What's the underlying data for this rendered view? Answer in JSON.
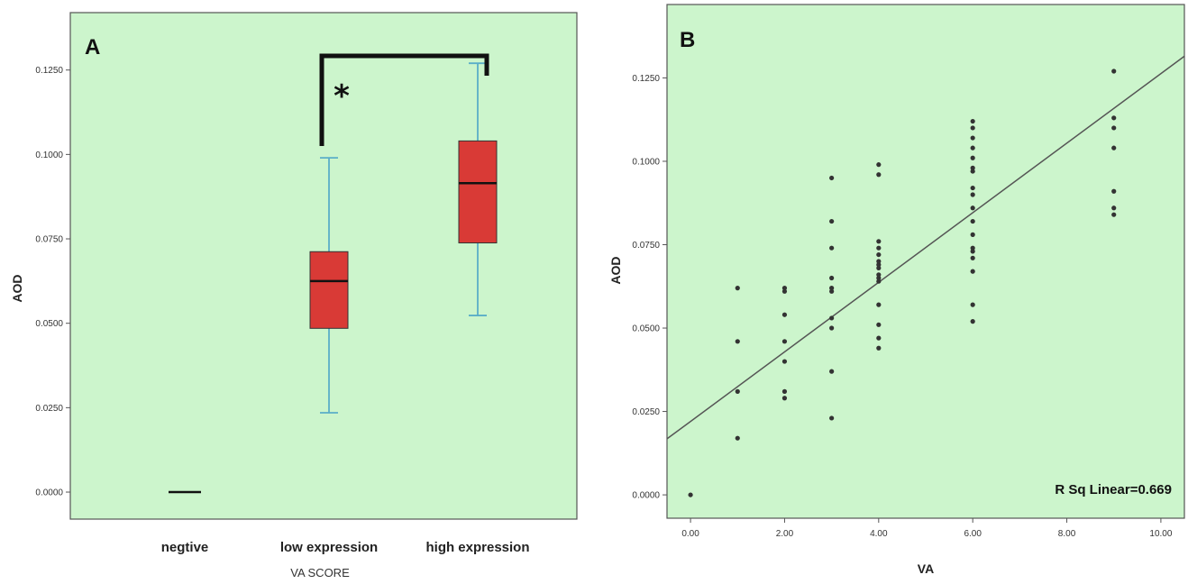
{
  "chart_data": [
    {
      "type": "box",
      "panel_label": "A",
      "xlabel": "VA SCORE",
      "ylabel": "AOD",
      "categories": [
        "negtive",
        "low expression",
        "high expression"
      ],
      "yticks": [
        "0.0000",
        "0.0250",
        "0.0500",
        "0.0750",
        "0.1000",
        "0.1250"
      ],
      "ylim": [
        -0.008,
        0.142
      ],
      "boxes": [
        {
          "category": "negtive",
          "min": 0.0,
          "q1": 0.0,
          "median": 0.0,
          "q3": 0.0,
          "max": 0.0
        },
        {
          "category": "low expression",
          "min": 0.0235,
          "q1": 0.0485,
          "median": 0.0625,
          "q3": 0.0712,
          "max": 0.099
        },
        {
          "category": "high expression",
          "min": 0.0523,
          "q1": 0.0738,
          "median": 0.0915,
          "q3": 0.104,
          "max": 0.127
        }
      ],
      "significance": {
        "between": [
          "low expression",
          "high expression"
        ],
        "marker": "*"
      },
      "colors": {
        "background": "#ccf5cc",
        "box": "#d93a36",
        "whisker": "#5aaec8"
      }
    },
    {
      "type": "scatter",
      "panel_label": "B",
      "xlabel": "VA",
      "ylabel": "AOD",
      "xticks": [
        "0.00",
        "2.00",
        "4.00",
        "6.00",
        "8.00",
        "10.00"
      ],
      "yticks": [
        "0.0000",
        "0.0250",
        "0.0500",
        "0.0750",
        "0.1000",
        "0.1250"
      ],
      "xlim": [
        -0.5,
        10.5
      ],
      "ylim": [
        -0.007,
        0.147
      ],
      "points": [
        [
          0,
          0.0
        ],
        [
          1,
          0.017
        ],
        [
          1,
          0.031
        ],
        [
          1,
          0.046
        ],
        [
          1,
          0.062
        ],
        [
          2,
          0.029
        ],
        [
          2,
          0.031
        ],
        [
          2,
          0.04
        ],
        [
          2,
          0.046
        ],
        [
          2,
          0.054
        ],
        [
          2,
          0.061
        ],
        [
          2,
          0.062
        ],
        [
          3,
          0.023
        ],
        [
          3,
          0.037
        ],
        [
          3,
          0.05
        ],
        [
          3,
          0.053
        ],
        [
          3,
          0.061
        ],
        [
          3,
          0.062
        ],
        [
          3,
          0.065
        ],
        [
          3,
          0.074
        ],
        [
          3,
          0.082
        ],
        [
          3,
          0.095
        ],
        [
          4,
          0.044
        ],
        [
          4,
          0.047
        ],
        [
          4,
          0.051
        ],
        [
          4,
          0.057
        ],
        [
          4,
          0.064
        ],
        [
          4,
          0.065
        ],
        [
          4,
          0.066
        ],
        [
          4,
          0.068
        ],
        [
          4,
          0.069
        ],
        [
          4,
          0.07
        ],
        [
          4,
          0.072
        ],
        [
          4,
          0.074
        ],
        [
          4,
          0.076
        ],
        [
          4,
          0.096
        ],
        [
          4,
          0.099
        ],
        [
          6,
          0.052
        ],
        [
          6,
          0.057
        ],
        [
          6,
          0.067
        ],
        [
          6,
          0.071
        ],
        [
          6,
          0.073
        ],
        [
          6,
          0.074
        ],
        [
          6,
          0.078
        ],
        [
          6,
          0.082
        ],
        [
          6,
          0.086
        ],
        [
          6,
          0.09
        ],
        [
          6,
          0.092
        ],
        [
          6,
          0.097
        ],
        [
          6,
          0.098
        ],
        [
          6,
          0.101
        ],
        [
          6,
          0.104
        ],
        [
          6,
          0.107
        ],
        [
          6,
          0.11
        ],
        [
          6,
          0.112
        ],
        [
          9,
          0.084
        ],
        [
          9,
          0.086
        ],
        [
          9,
          0.091
        ],
        [
          9,
          0.104
        ],
        [
          9,
          0.11
        ],
        [
          9,
          0.113
        ],
        [
          9,
          0.127
        ]
      ],
      "fit_line": {
        "x": [
          -0.5,
          10.5
        ],
        "y": [
          0.0168,
          0.1315
        ]
      },
      "annotation": "R Sq Linear=0.669",
      "colors": {
        "background": "#ccf5cc",
        "point": "#333333",
        "line": "#555555"
      }
    }
  ]
}
